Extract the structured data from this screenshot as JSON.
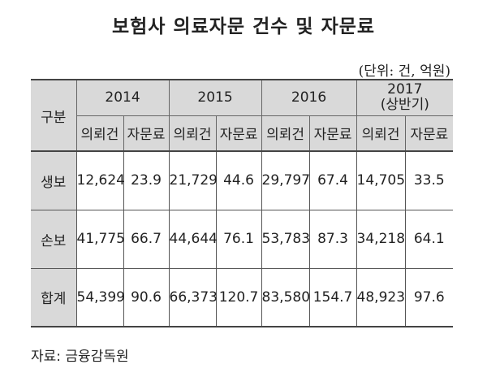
{
  "title": "보험사 의료자문 건수 및 자문료",
  "unit": "(단위: 건, 억원)",
  "table": {
    "row_header_label": "구분",
    "years": [
      {
        "line1": "2014",
        "line2": ""
      },
      {
        "line1": "2015",
        "line2": ""
      },
      {
        "line1": "2016",
        "line2": ""
      },
      {
        "line1": "2017",
        "line2": "(상반기)"
      }
    ],
    "sub_headers": [
      "의뢰건",
      "자문료",
      "의뢰건",
      "자문료",
      "의뢰건",
      "자문료",
      "의뢰건",
      "자문료"
    ],
    "rows": [
      {
        "label": "생보",
        "values": [
          "12,624",
          "23.9",
          "21,729",
          "44.6",
          "29,797",
          "67.4",
          "14,705",
          "33.5"
        ]
      },
      {
        "label": "손보",
        "values": [
          "41,775",
          "66.7",
          "44,644",
          "76.1",
          "53,783",
          "87.3",
          "34,218",
          "64.1"
        ]
      },
      {
        "label": "합계",
        "values": [
          "54,399",
          "90.6",
          "66,373",
          "120.7",
          "83,580",
          "154.7",
          "48,923",
          "97.6"
        ]
      }
    ]
  },
  "source": "자료: 금융감독원"
}
